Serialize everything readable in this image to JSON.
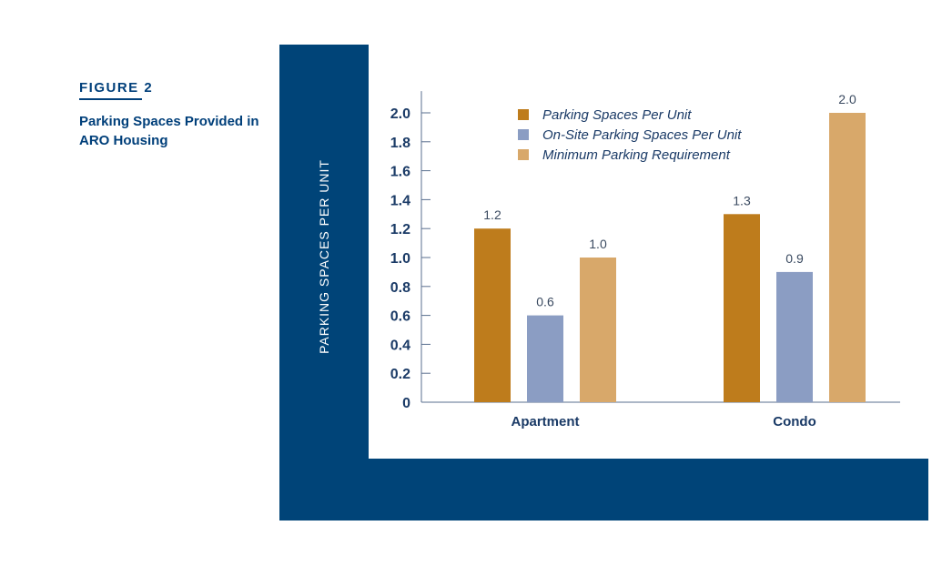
{
  "figure": {
    "label": "FIGURE 2",
    "caption": "Parking Spaces Provided in ARO Housing"
  },
  "colors": {
    "panel": "#004478",
    "axis": "#5a6f8f",
    "label_text": "#1a3a66",
    "value_text": "#3a4a60"
  },
  "chart_data": {
    "type": "bar",
    "categories": [
      "Apartment",
      "Condo"
    ],
    "series": [
      {
        "name": "Parking Spaces Per Unit",
        "values": [
          1.2,
          1.3
        ],
        "color": "#be7c1c"
      },
      {
        "name": "On-Site Parking Spaces Per Unit",
        "values": [
          0.6,
          0.9
        ],
        "color": "#8b9dc3"
      },
      {
        "name": "Minimum Parking Requirement",
        "values": [
          1.0,
          2.0
        ],
        "color": "#d8a86a"
      }
    ],
    "value_labels": [
      [
        "1.2",
        "1.3"
      ],
      [
        "0.6",
        "0.9"
      ],
      [
        "1.0",
        "2.0"
      ]
    ],
    "ylabel": "PARKING SPACES PER UNIT",
    "xlabel": "",
    "ylim": [
      0,
      2.15
    ],
    "yticks": [
      0,
      0.2,
      0.4,
      0.6,
      0.8,
      1.0,
      1.2,
      1.4,
      1.6,
      1.8,
      2.0
    ],
    "ytick_labels": [
      "0",
      "0.2",
      "0.4",
      "0.6",
      "0.8",
      "1.0",
      "1.2",
      "1.4",
      "1.6",
      "1.8",
      "2.0"
    ],
    "grid": false,
    "legend_position": "top-center"
  }
}
